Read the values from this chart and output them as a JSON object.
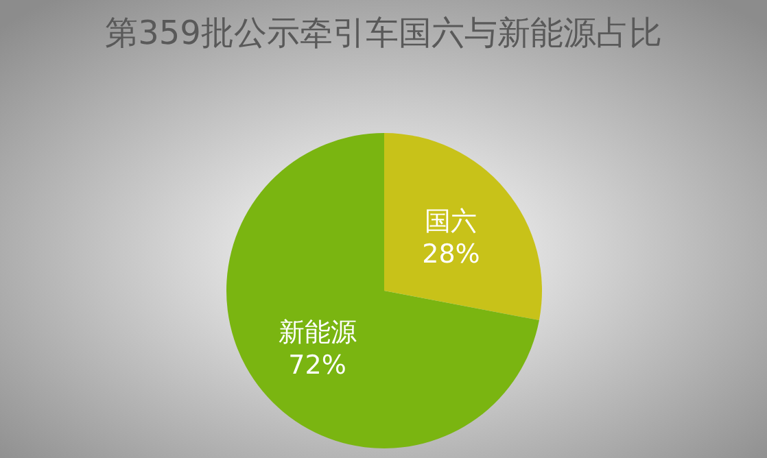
{
  "chart_data": {
    "type": "pie",
    "title": "第359批公示牵引车国六与新能源占比",
    "categories": [
      "国六",
      "新能源"
    ],
    "values": [
      28,
      72
    ],
    "value_labels": [
      "28%",
      "72%"
    ],
    "colors": [
      "#c8c219",
      "#7ab511"
    ]
  }
}
